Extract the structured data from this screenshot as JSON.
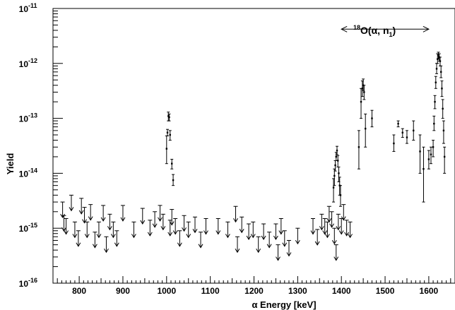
{
  "chart_data": {
    "type": "scatter",
    "xlabel": "α Energy [keV]",
    "ylabel": "Yield",
    "xlim": [
      740,
      1660
    ],
    "ylim": [
      1e-16,
      1e-11
    ],
    "yscale": "log",
    "grid": false,
    "x_ticks": [
      {
        "value": 800,
        "label": "800"
      },
      {
        "value": 900,
        "label": "900"
      },
      {
        "value": 1000,
        "label": "1000"
      },
      {
        "value": 1100,
        "label": "1100"
      },
      {
        "value": 1200,
        "label": "1200"
      },
      {
        "value": 1300,
        "label": "1300"
      },
      {
        "value": 1400,
        "label": "1400"
      },
      {
        "value": 1500,
        "label": "1500"
      },
      {
        "value": 1600,
        "label": "1600"
      }
    ],
    "y_ticks": [
      {
        "value": 1e-16,
        "label": "10",
        "exp": "-16"
      },
      {
        "value": 1e-15,
        "label": "10",
        "exp": "-15"
      },
      {
        "value": 1e-14,
        "label": "10",
        "exp": "-14"
      },
      {
        "value": 1e-13,
        "label": "10",
        "exp": "-13"
      },
      {
        "value": 1e-12,
        "label": "10",
        "exp": "-12"
      },
      {
        "value": 1e-11,
        "label": "10",
        "exp": "-11"
      }
    ],
    "annotation": {
      "text_prefix": "18",
      "text_main": "O(α, n",
      "text_sub": "1",
      "text_suffix": ")",
      "x_start": 1400,
      "x_end": 1600,
      "y": 4.2e-12
    },
    "upper_limits": [
      [
        762,
        3e-15
      ],
      [
        765,
        1.7e-15
      ],
      [
        770,
        1.5e-15
      ],
      [
        782,
        4e-15
      ],
      [
        790,
        1.3e-15
      ],
      [
        798,
        9e-16
      ],
      [
        805,
        3.5e-15
      ],
      [
        812,
        2.4e-15
      ],
      [
        818,
        1.3e-15
      ],
      [
        826,
        2.7e-15
      ],
      [
        836,
        8.5e-16
      ],
      [
        845,
        1.3e-15
      ],
      [
        855,
        2.6e-15
      ],
      [
        862,
        7e-16
      ],
      [
        870,
        1.8e-15
      ],
      [
        878,
        1.3e-15
      ],
      [
        886,
        9e-16
      ],
      [
        900,
        2.6e-15
      ],
      [
        925,
        1.3e-15
      ],
      [
        945,
        2.3e-15
      ],
      [
        962,
        1.4e-15
      ],
      [
        973,
        2e-15
      ],
      [
        985,
        2.6e-15
      ],
      [
        992,
        1.8e-15
      ],
      [
        1008,
        1.4e-15
      ],
      [
        1012,
        2.2e-15
      ],
      [
        1020,
        1.5e-15
      ],
      [
        1030,
        9e-16
      ],
      [
        1040,
        1.7e-15
      ],
      [
        1050,
        1.3e-15
      ],
      [
        1065,
        1.6e-15
      ],
      [
        1078,
        8.5e-16
      ],
      [
        1090,
        1.5e-15
      ],
      [
        1118,
        1.5e-15
      ],
      [
        1140,
        1.3e-15
      ],
      [
        1158,
        2.5e-15
      ],
      [
        1162,
        7e-16
      ],
      [
        1172,
        1.6e-15
      ],
      [
        1188,
        1.2e-15
      ],
      [
        1198,
        1.3e-15
      ],
      [
        1210,
        7e-16
      ],
      [
        1222,
        1.2e-15
      ],
      [
        1235,
        8.5e-16
      ],
      [
        1250,
        1.2e-15
      ],
      [
        1255,
        5e-16
      ],
      [
        1262,
        1.5e-15
      ],
      [
        1270,
        9e-16
      ],
      [
        1280,
        6e-16
      ],
      [
        1300,
        1e-15
      ],
      [
        1335,
        1.5e-15
      ],
      [
        1345,
        9.5e-16
      ],
      [
        1355,
        1.8e-15
      ],
      [
        1362,
        1.5e-15
      ],
      [
        1368,
        1.3e-15
      ],
      [
        1372,
        2.5e-15
      ],
      [
        1378,
        2e-15
      ],
      [
        1384,
        1e-15
      ],
      [
        1388,
        5e-16
      ],
      [
        1393,
        1.8e-15
      ],
      [
        1400,
        1.5e-15
      ],
      [
        1405,
        2.7e-15
      ],
      [
        1412,
        1.4e-15
      ],
      [
        1420,
        1.3e-15
      ]
    ],
    "error_points": [
      [
        1000,
        2.8e-14,
        1.5e-14,
        4.8e-14
      ],
      [
        1002,
        5.5e-14,
        4.8e-14,
        6.3e-14
      ],
      [
        1004,
        1.1e-13,
        9e-14,
        1.3e-13
      ],
      [
        1006,
        1.05e-13,
        9e-14,
        1.2e-13
      ],
      [
        1008,
        5e-14,
        4e-14,
        6e-14
      ],
      [
        1012,
        1.5e-14,
        1.2e-14,
        1.8e-14
      ],
      [
        1015,
        7.5e-15,
        6e-15,
        9.5e-15
      ],
      [
        1382,
        5.5e-15,
        3e-15,
        8e-15
      ],
      [
        1384,
        9e-15,
        6e-15,
        1.2e-14
      ],
      [
        1386,
        1.4e-14,
        1.1e-14,
        1.7e-14
      ],
      [
        1388,
        2e-14,
        1.7e-14,
        2.4e-14
      ],
      [
        1390,
        2.6e-14,
        2.2e-14,
        3.1e-14
      ],
      [
        1392,
        1.7e-14,
        1.3e-14,
        2.1e-14
      ],
      [
        1394,
        1e-14,
        7e-15,
        1.3e-14
      ],
      [
        1396,
        6e-15,
        4e-15,
        8.5e-15
      ],
      [
        1398,
        4e-15,
        2.5e-15,
        6e-15
      ],
      [
        1440,
        3e-14,
        1.2e-14,
        6e-14
      ],
      [
        1445,
        2e-13,
        1e-13,
        3.5e-13
      ],
      [
        1448,
        3.5e-13,
        2.5e-13,
        4.8e-13
      ],
      [
        1450,
        4e-13,
        3.2e-13,
        5.2e-13
      ],
      [
        1452,
        3e-13,
        2.2e-13,
        4e-13
      ],
      [
        1455,
        6.5e-14,
        3e-14,
        1.2e-13
      ],
      [
        1470,
        1e-13,
        7e-14,
        1.4e-13
      ],
      [
        1520,
        3.5e-14,
        2.5e-14,
        5e-14
      ],
      [
        1530,
        8e-14,
        7e-14,
        9e-14
      ],
      [
        1540,
        5.5e-14,
        4.5e-14,
        6.5e-14
      ],
      [
        1550,
        4.5e-14,
        3.5e-14,
        6e-14
      ],
      [
        1565,
        6e-14,
        4e-14,
        9e-14
      ],
      [
        1580,
        2.5e-14,
        1e-14,
        5e-14
      ],
      [
        1588,
        1.2e-14,
        3e-15,
        3e-14
      ],
      [
        1600,
        1.8e-14,
        1.2e-14,
        2.6e-14
      ],
      [
        1605,
        2.2e-14,
        1.5e-14,
        3e-14
      ],
      [
        1610,
        3e-14,
        2e-14,
        4e-14
      ],
      [
        1612,
        8e-14,
        6e-14,
        1.1e-13
      ],
      [
        1614,
        2e-13,
        1.5e-13,
        2.6e-13
      ],
      [
        1616,
        4.5e-13,
        3.5e-13,
        5.8e-13
      ],
      [
        1618,
        8e-13,
        6.5e-13,
        1e-12
      ],
      [
        1620,
        1.2e-12,
        1e-12,
        1.5e-12
      ],
      [
        1622,
        1.4e-12,
        1.2e-12,
        1.6e-12
      ],
      [
        1624,
        1.3e-12,
        1.1e-12,
        1.5e-12
      ],
      [
        1626,
        1.1e-12,
        9e-13,
        1.3e-12
      ],
      [
        1628,
        7e-13,
        5.5e-13,
        9e-13
      ],
      [
        1630,
        3.5e-13,
        2.5e-13,
        4.8e-13
      ],
      [
        1632,
        1.5e-13,
        1e-13,
        2.2e-13
      ],
      [
        1634,
        6e-14,
        3.5e-14,
        9e-14
      ],
      [
        1636,
        2e-14,
        1e-14,
        3e-14
      ]
    ]
  }
}
